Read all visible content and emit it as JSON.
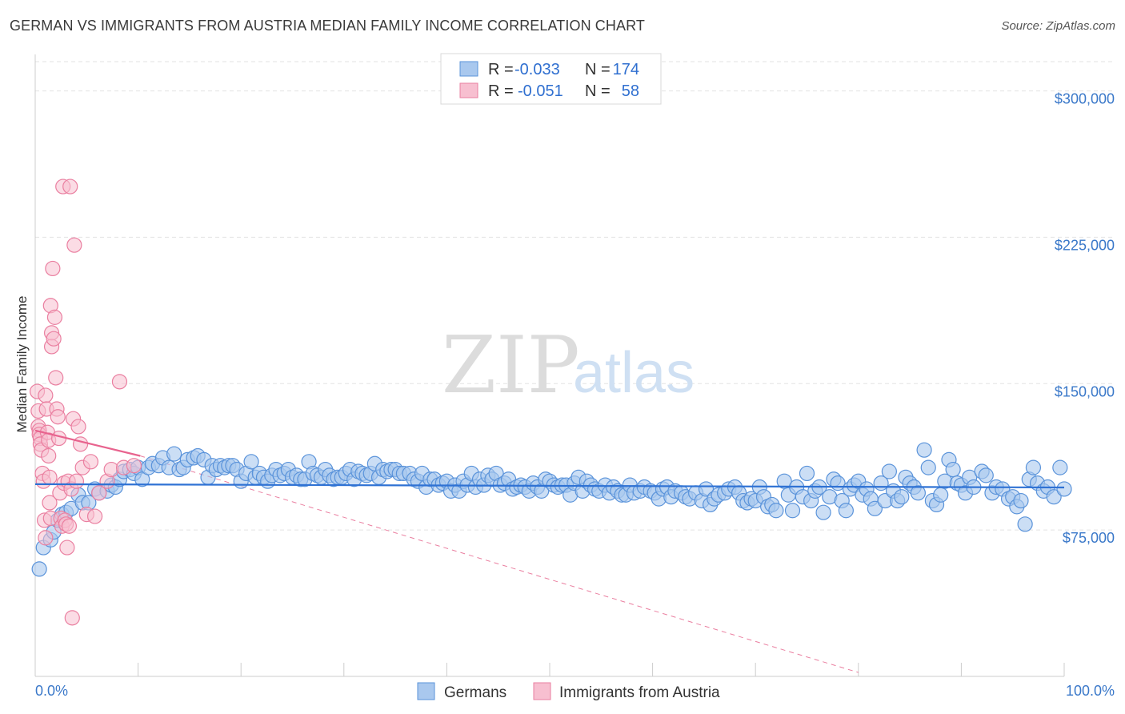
{
  "title": "GERMAN VS IMMIGRANTS FROM AUSTRIA MEDIAN FAMILY INCOME CORRELATION CHART",
  "source": "Source: ZipAtlas.com",
  "watermark": {
    "zip": "ZIP",
    "atlas": "atlas"
  },
  "legend_top": {
    "r_label": "R =",
    "n_label": "N =",
    "rows": [
      {
        "series": "Germans",
        "r": "-0.033",
        "n": "174"
      },
      {
        "series": "Immigrants from Austria",
        "r": "-0.051",
        "n": "58"
      }
    ]
  },
  "colors": {
    "germans_fill": "#a9c8ee",
    "germans_stroke": "#5a93da",
    "germans_line": "#2f72d4",
    "austria_fill": "#f7bfd0",
    "austria_stroke": "#ea7fa0",
    "austria_line": "#e8638e",
    "grid": "#e3e3e3",
    "axis_text": "#3a78c9"
  },
  "chart_data": {
    "type": "scatter",
    "title": "GERMAN VS IMMIGRANTS FROM AUSTRIA MEDIAN FAMILY INCOME CORRELATION CHART",
    "xlabel": "",
    "ylabel": "Median Family Income",
    "xlim": [
      0,
      100
    ],
    "ylim": [
      0,
      315000
    ],
    "x_tick_labels": [
      "0.0%",
      "100.0%"
    ],
    "y_ticks": [
      {
        "value": 75000,
        "label": "$75,000"
      },
      {
        "value": 150000,
        "label": "$150,000"
      },
      {
        "value": 225000,
        "label": "$225,000"
      },
      {
        "value": 300000,
        "label": "$300,000"
      }
    ],
    "series": [
      {
        "name": "Germans",
        "r": -0.033,
        "n": 174,
        "trend": {
          "x": [
            0,
            100
          ],
          "y": [
            98500,
            96800
          ]
        },
        "points": [
          [
            0.4,
            55000
          ],
          [
            0.8,
            66000
          ],
          [
            1.5,
            70000
          ],
          [
            1.8,
            74000
          ],
          [
            2.2,
            80000
          ],
          [
            2.6,
            83000
          ],
          [
            3.0,
            84000
          ],
          [
            3.5,
            86000
          ],
          [
            4.2,
            93000
          ],
          [
            4.6,
            89000
          ],
          [
            5.2,
            89000
          ],
          [
            5.8,
            96000
          ],
          [
            6.2,
            94000
          ],
          [
            7.0,
            95000
          ],
          [
            7.4,
            98000
          ],
          [
            7.8,
            97000
          ],
          [
            8.2,
            101000
          ],
          [
            8.6,
            105000
          ],
          [
            9.2,
            106000
          ],
          [
            9.6,
            104000
          ],
          [
            10.0,
            107000
          ],
          [
            10.4,
            101000
          ],
          [
            11.0,
            107000
          ],
          [
            11.4,
            109000
          ],
          [
            12.0,
            108000
          ],
          [
            12.4,
            112000
          ],
          [
            13.0,
            107000
          ],
          [
            13.5,
            114000
          ],
          [
            14.0,
            106000
          ],
          [
            14.4,
            107000
          ],
          [
            14.8,
            111000
          ],
          [
            15.4,
            112000
          ],
          [
            15.8,
            113000
          ],
          [
            16.4,
            111000
          ],
          [
            16.8,
            102000
          ],
          [
            17.2,
            108000
          ],
          [
            17.6,
            106000
          ],
          [
            18.0,
            108000
          ],
          [
            18.4,
            107000
          ],
          [
            18.8,
            108000
          ],
          [
            19.2,
            108000
          ],
          [
            19.6,
            106000
          ],
          [
            20.0,
            100000
          ],
          [
            20.5,
            104000
          ],
          [
            21.0,
            110000
          ],
          [
            21.4,
            102000
          ],
          [
            21.8,
            104000
          ],
          [
            22.2,
            102000
          ],
          [
            22.6,
            100000
          ],
          [
            23.0,
            103000
          ],
          [
            23.4,
            106000
          ],
          [
            23.8,
            103000
          ],
          [
            24.2,
            104000
          ],
          [
            24.6,
            106000
          ],
          [
            25.0,
            102000
          ],
          [
            25.4,
            103000
          ],
          [
            25.8,
            101000
          ],
          [
            26.2,
            101000
          ],
          [
            26.6,
            110000
          ],
          [
            27.0,
            104000
          ],
          [
            27.4,
            103000
          ],
          [
            27.8,
            102000
          ],
          [
            28.2,
            106000
          ],
          [
            28.6,
            103000
          ],
          [
            29.0,
            101000
          ],
          [
            29.4,
            102000
          ],
          [
            29.8,
            102000
          ],
          [
            30.2,
            104000
          ],
          [
            30.6,
            106000
          ],
          [
            31.0,
            101000
          ],
          [
            31.4,
            105000
          ],
          [
            31.8,
            104000
          ],
          [
            32.2,
            103000
          ],
          [
            32.6,
            104000
          ],
          [
            33.0,
            109000
          ],
          [
            33.4,
            102000
          ],
          [
            33.8,
            106000
          ],
          [
            34.2,
            105000
          ],
          [
            34.6,
            106000
          ],
          [
            35.0,
            106000
          ],
          [
            35.4,
            104000
          ],
          [
            35.8,
            104000
          ],
          [
            36.4,
            104000
          ],
          [
            36.8,
            101000
          ],
          [
            37.2,
            100000
          ],
          [
            37.6,
            104000
          ],
          [
            38.0,
            97000
          ],
          [
            38.4,
            101000
          ],
          [
            38.8,
            101000
          ],
          [
            39.2,
            98000
          ],
          [
            39.6,
            99000
          ],
          [
            40.0,
            100000
          ],
          [
            40.4,
            95000
          ],
          [
            40.8,
            98000
          ],
          [
            41.2,
            95000
          ],
          [
            41.6,
            100000
          ],
          [
            42.0,
            98000
          ],
          [
            42.4,
            104000
          ],
          [
            42.8,
            97000
          ],
          [
            43.2,
            101000
          ],
          [
            43.6,
            98000
          ],
          [
            44.0,
            103000
          ],
          [
            44.4,
            101000
          ],
          [
            44.8,
            104000
          ],
          [
            45.2,
            98000
          ],
          [
            45.6,
            99000
          ],
          [
            46.0,
            101000
          ],
          [
            46.4,
            96000
          ],
          [
            46.8,
            97000
          ],
          [
            47.2,
            98000
          ],
          [
            47.6,
            97000
          ],
          [
            48.0,
            95000
          ],
          [
            48.4,
            99000
          ],
          [
            48.8,
            97000
          ],
          [
            49.2,
            95000
          ],
          [
            49.6,
            101000
          ],
          [
            50.0,
            100000
          ],
          [
            50.4,
            98000
          ],
          [
            50.8,
            97000
          ],
          [
            51.2,
            98000
          ],
          [
            51.6,
            98000
          ],
          [
            52.0,
            93000
          ],
          [
            52.4,
            99000
          ],
          [
            52.8,
            102000
          ],
          [
            53.2,
            95000
          ],
          [
            53.6,
            100000
          ],
          [
            54.0,
            98000
          ],
          [
            54.4,
            96000
          ],
          [
            54.8,
            95000
          ],
          [
            55.4,
            98000
          ],
          [
            55.8,
            94000
          ],
          [
            56.2,
            97000
          ],
          [
            56.6,
            95000
          ],
          [
            57.0,
            93000
          ],
          [
            57.4,
            93000
          ],
          [
            57.8,
            98000
          ],
          [
            58.2,
            94000
          ],
          [
            58.8,
            95000
          ],
          [
            59.2,
            97000
          ],
          [
            59.8,
            95000
          ],
          [
            60.2,
            94000
          ],
          [
            60.6,
            91000
          ],
          [
            61.0,
            96000
          ],
          [
            61.4,
            97000
          ],
          [
            61.8,
            92000
          ],
          [
            62.2,
            95000
          ],
          [
            62.8,
            94000
          ],
          [
            63.2,
            92000
          ],
          [
            63.6,
            91000
          ],
          [
            64.2,
            94000
          ],
          [
            64.8,
            90000
          ],
          [
            65.2,
            96000
          ],
          [
            65.6,
            88000
          ],
          [
            66.0,
            91000
          ],
          [
            66.4,
            93000
          ],
          [
            67.0,
            94000
          ],
          [
            67.4,
            96000
          ],
          [
            68.0,
            97000
          ],
          [
            68.4,
            94000
          ],
          [
            68.8,
            90000
          ],
          [
            69.2,
            89000
          ],
          [
            69.6,
            91000
          ],
          [
            70.0,
            90000
          ],
          [
            70.4,
            97000
          ],
          [
            70.8,
            92000
          ],
          [
            71.2,
            87000
          ],
          [
            71.6,
            88000
          ],
          [
            72.0,
            85000
          ],
          [
            72.8,
            100000
          ],
          [
            73.2,
            93000
          ],
          [
            73.6,
            85000
          ],
          [
            74.0,
            97000
          ],
          [
            74.6,
            92000
          ],
          [
            75.0,
            104000
          ],
          [
            75.4,
            90000
          ],
          [
            75.8,
            95000
          ],
          [
            76.2,
            97000
          ],
          [
            76.6,
            84000
          ],
          [
            77.2,
            92000
          ],
          [
            77.6,
            101000
          ],
          [
            78.0,
            99000
          ],
          [
            78.4,
            90000
          ],
          [
            78.8,
            85000
          ],
          [
            79.2,
            96000
          ],
          [
            79.6,
            98000
          ],
          [
            80.0,
            100000
          ],
          [
            80.4,
            93000
          ],
          [
            80.8,
            96000
          ],
          [
            81.2,
            91000
          ],
          [
            81.6,
            86000
          ],
          [
            82.2,
            99000
          ],
          [
            82.6,
            90000
          ],
          [
            83.0,
            105000
          ],
          [
            83.4,
            95000
          ],
          [
            83.8,
            90000
          ],
          [
            84.2,
            92000
          ],
          [
            84.6,
            102000
          ],
          [
            85.0,
            99000
          ],
          [
            85.4,
            97000
          ],
          [
            85.8,
            94000
          ],
          [
            86.4,
            116000
          ],
          [
            86.8,
            107000
          ],
          [
            87.2,
            90000
          ],
          [
            87.6,
            88000
          ],
          [
            88.0,
            93000
          ],
          [
            88.4,
            100000
          ],
          [
            88.8,
            111000
          ],
          [
            89.2,
            106000
          ],
          [
            89.6,
            99000
          ],
          [
            90.0,
            98000
          ],
          [
            90.4,
            94000
          ],
          [
            90.8,
            102000
          ],
          [
            91.2,
            97000
          ],
          [
            92.0,
            105000
          ],
          [
            92.4,
            103000
          ],
          [
            93.0,
            94000
          ],
          [
            93.4,
            97000
          ],
          [
            94.0,
            96000
          ],
          [
            94.6,
            91000
          ],
          [
            95.0,
            92000
          ],
          [
            95.4,
            87000
          ],
          [
            95.8,
            90000
          ],
          [
            96.2,
            78000
          ],
          [
            96.6,
            101000
          ],
          [
            97.0,
            107000
          ],
          [
            97.4,
            99000
          ],
          [
            98.0,
            95000
          ],
          [
            98.4,
            97000
          ],
          [
            99.0,
            92000
          ],
          [
            99.6,
            107000
          ],
          [
            100.0,
            96000
          ]
        ]
      },
      {
        "name": "Immigrants from Austria",
        "r": -0.051,
        "n": 58,
        "trend": {
          "x": [
            0,
            10.2
          ],
          "y": [
            126000,
            113000
          ]
        },
        "trend_extended": {
          "x": [
            10.2,
            80
          ],
          "y": [
            113000,
            2000
          ]
        },
        "points": [
          [
            0.2,
            146000
          ],
          [
            0.3,
            136000
          ],
          [
            0.3,
            128000
          ],
          [
            0.4,
            126000
          ],
          [
            0.4,
            124000
          ],
          [
            0.5,
            122000
          ],
          [
            0.5,
            119000
          ],
          [
            0.6,
            116000
          ],
          [
            0.7,
            104000
          ],
          [
            0.8,
            100000
          ],
          [
            0.9,
            80000
          ],
          [
            1.0,
            71000
          ],
          [
            1.0,
            144000
          ],
          [
            1.1,
            137000
          ],
          [
            1.2,
            125000
          ],
          [
            1.3,
            121000
          ],
          [
            1.3,
            113000
          ],
          [
            1.4,
            102000
          ],
          [
            1.4,
            89000
          ],
          [
            1.5,
            81000
          ],
          [
            1.5,
            190000
          ],
          [
            1.6,
            176000
          ],
          [
            1.6,
            169000
          ],
          [
            1.7,
            209000
          ],
          [
            1.8,
            173000
          ],
          [
            1.9,
            184000
          ],
          [
            2.0,
            153000
          ],
          [
            2.1,
            137000
          ],
          [
            2.2,
            133000
          ],
          [
            2.3,
            122000
          ],
          [
            2.4,
            94000
          ],
          [
            2.5,
            81000
          ],
          [
            2.6,
            77000
          ],
          [
            2.7,
            251000
          ],
          [
            2.8,
            99000
          ],
          [
            2.9,
            80000
          ],
          [
            3.0,
            78000
          ],
          [
            3.1,
            66000
          ],
          [
            3.2,
            100000
          ],
          [
            3.3,
            77000
          ],
          [
            3.4,
            251000
          ],
          [
            3.5,
            96000
          ],
          [
            3.6,
            30000
          ],
          [
            3.7,
            132000
          ],
          [
            3.8,
            221000
          ],
          [
            4.0,
            100000
          ],
          [
            4.2,
            128000
          ],
          [
            4.4,
            119000
          ],
          [
            4.6,
            107000
          ],
          [
            5.0,
            83000
          ],
          [
            5.4,
            110000
          ],
          [
            5.8,
            82000
          ],
          [
            6.2,
            94000
          ],
          [
            7.0,
            100000
          ],
          [
            7.4,
            106000
          ],
          [
            8.2,
            151000
          ],
          [
            8.6,
            107000
          ],
          [
            9.6,
            108000
          ]
        ]
      }
    ],
    "legend": [
      "Germans",
      "Immigrants from Austria"
    ]
  }
}
